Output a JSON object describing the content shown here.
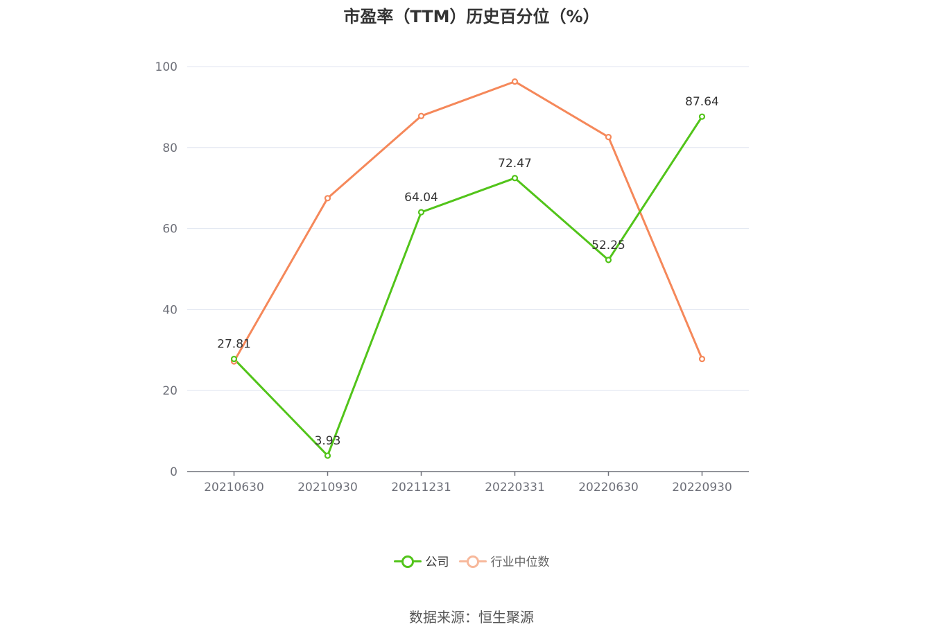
{
  "chart_data": {
    "type": "line",
    "title": "市盈率（TTM）历史百分位（%）",
    "categories": [
      "20210630",
      "20210930",
      "20211231",
      "20220331",
      "20220630",
      "20220930"
    ],
    "series": [
      {
        "name": "公司",
        "values": [
          27.81,
          3.93,
          64.04,
          72.47,
          52.25,
          87.64
        ],
        "color": "#52c41a",
        "labels": [
          "27.81",
          "3.93",
          "64.04",
          "72.47",
          "52.25",
          "87.64"
        ]
      },
      {
        "name": "行业中位数",
        "values": [
          27.2,
          67.5,
          87.8,
          96.3,
          82.6,
          27.8
        ],
        "color": "#f5885a"
      }
    ],
    "yticks": [
      "0",
      "20",
      "40",
      "60",
      "80",
      "100"
    ],
    "ylim": [
      0,
      100
    ],
    "grid": true,
    "legend_position": "bottom-center",
    "source": "数据来源：恒生聚源"
  }
}
